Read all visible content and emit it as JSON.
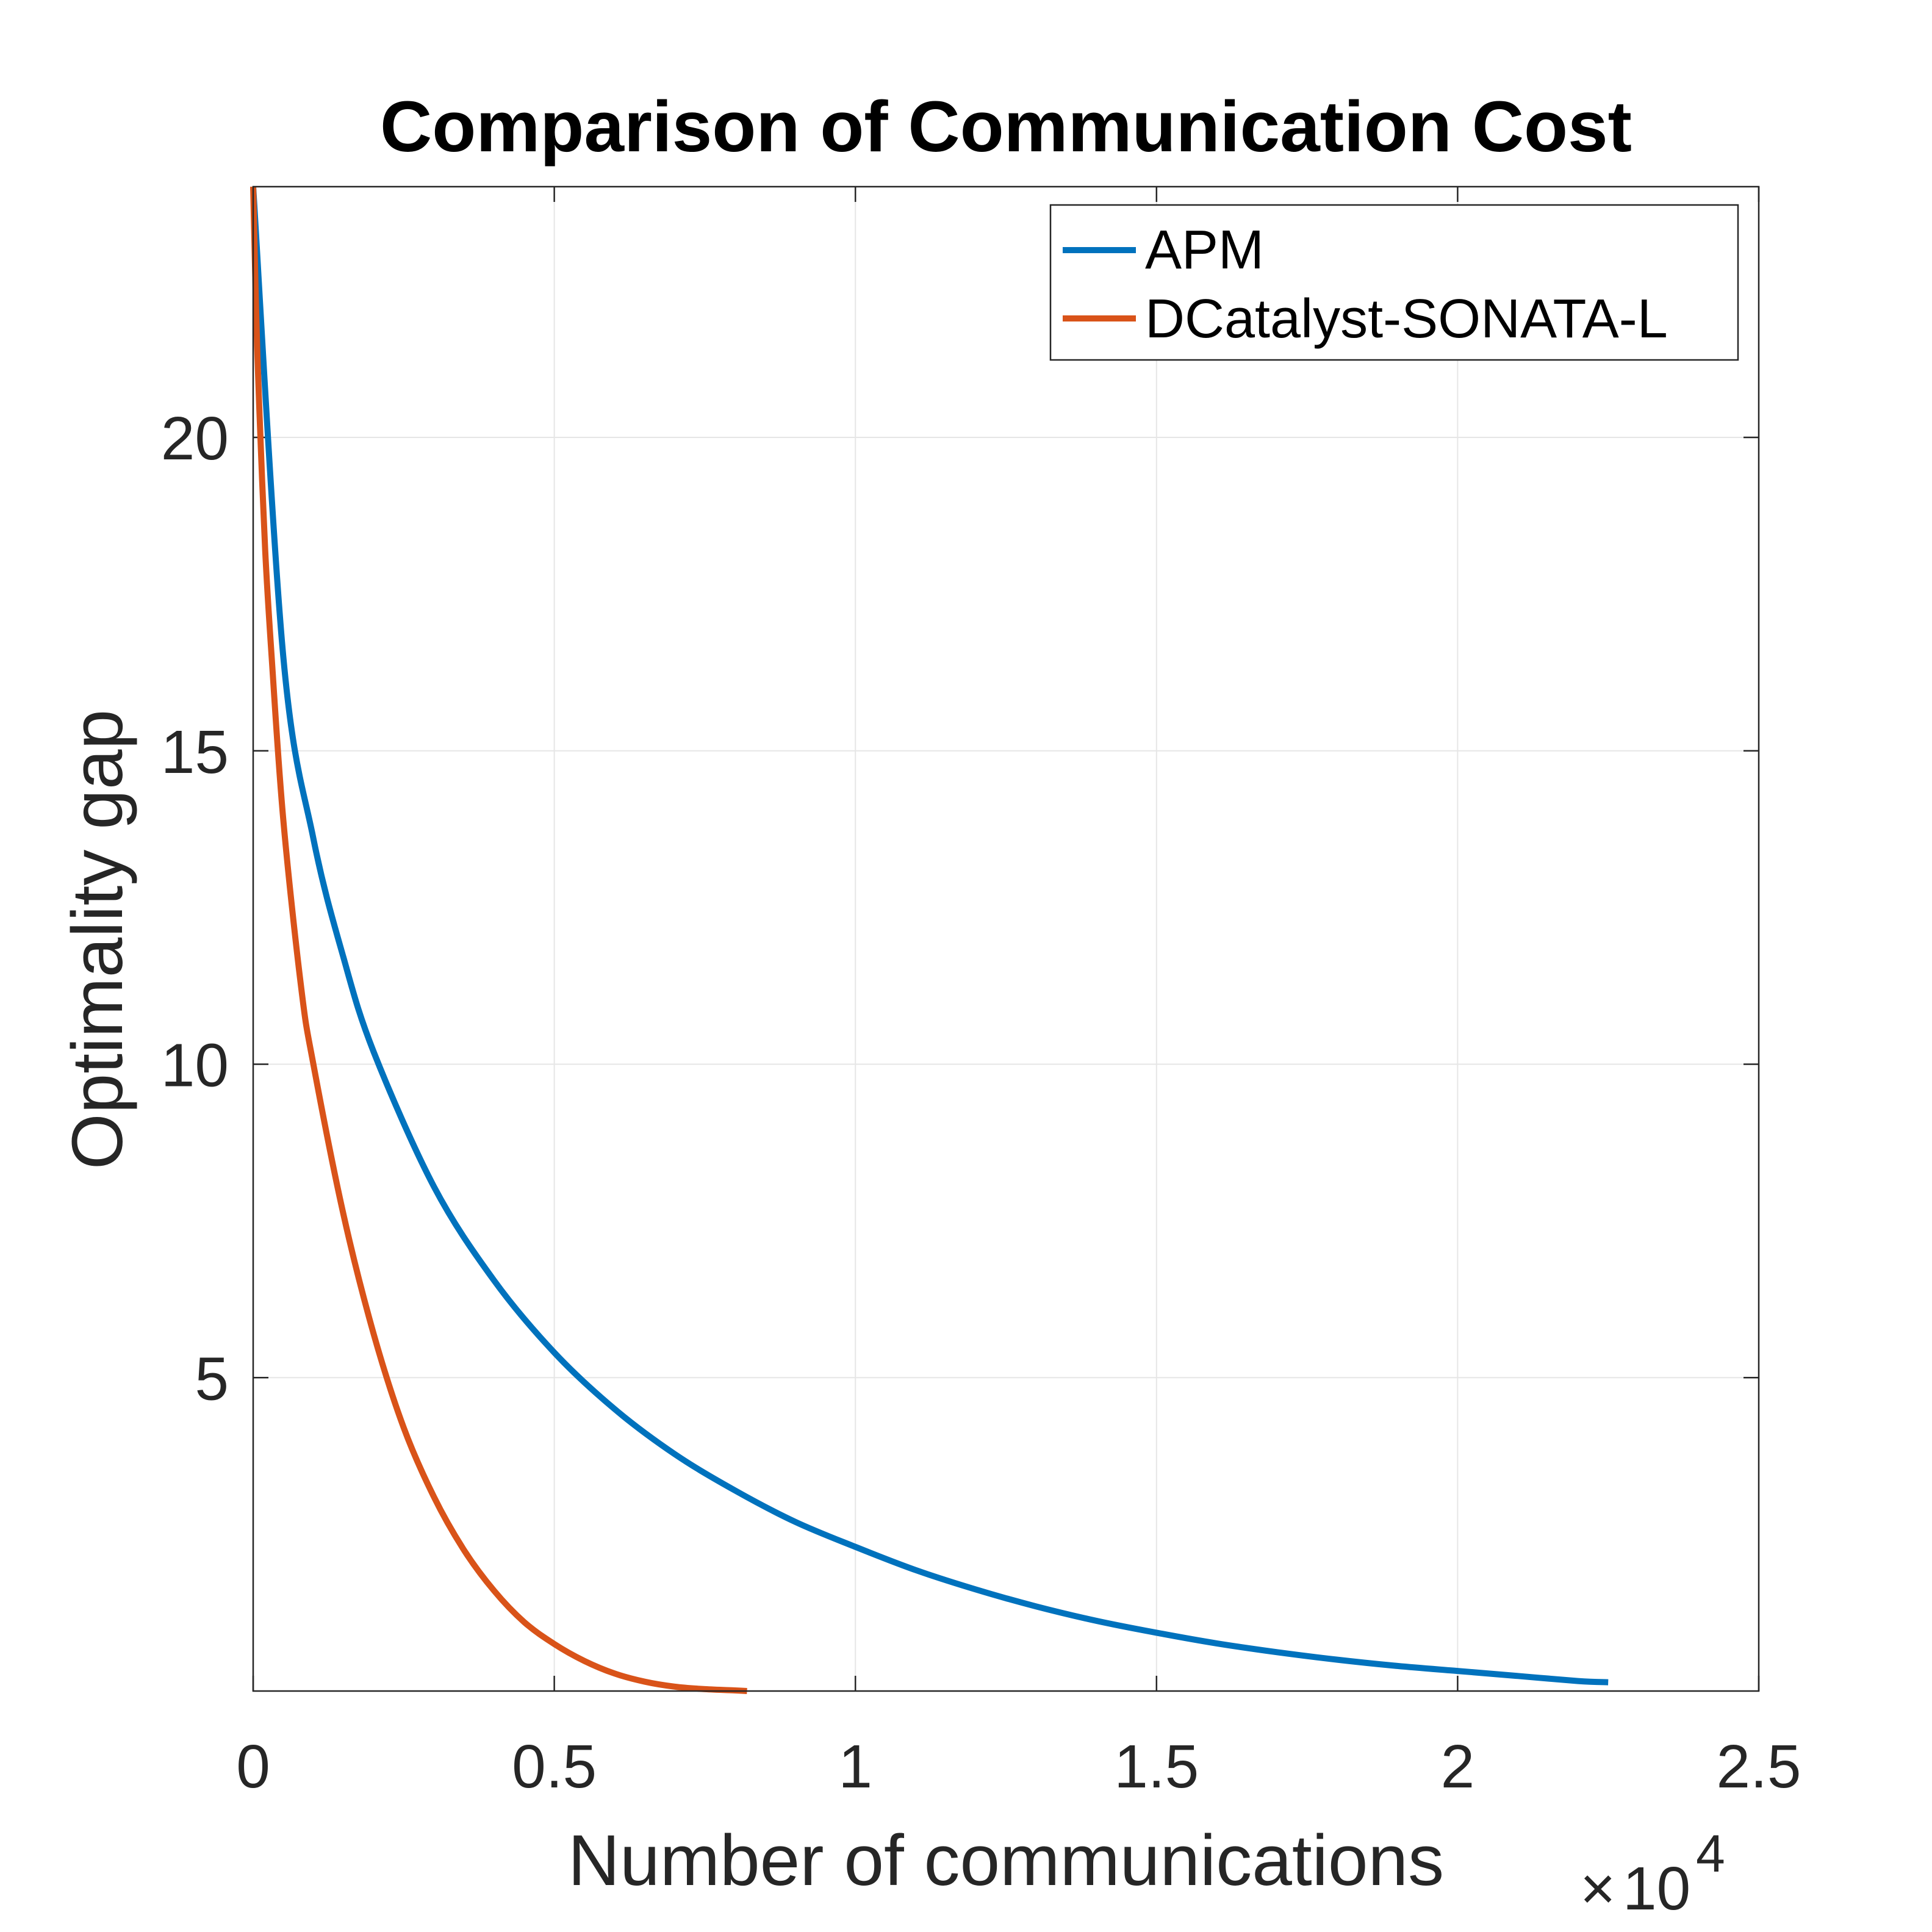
{
  "chart_data": {
    "type": "line",
    "title": "Comparison of Communication Cost",
    "xlabel": "Number of communications",
    "ylabel": "Optimality gap",
    "x_exponent": {
      "base": "10",
      "power": "4",
      "prefix": "×"
    },
    "xlim": [
      0,
      2.5
    ],
    "ylim": [
      0,
      24
    ],
    "xticks": [
      0,
      0.5,
      1,
      1.5,
      2,
      2.5
    ],
    "xtick_labels": [
      "0",
      "0.5",
      "1",
      "1.5",
      "2",
      "2.5"
    ],
    "yticks": [
      5,
      10,
      15,
      20
    ],
    "ytick_labels": [
      "5",
      "10",
      "15",
      "20"
    ],
    "grid": true,
    "legend_position": "top-right",
    "series": [
      {
        "name": "APM",
        "color": "#0072BD",
        "x": [
          0,
          0.05,
          0.1,
          0.15,
          0.2,
          0.3,
          0.4,
          0.5,
          0.6,
          0.7,
          0.8,
          0.9,
          1.0,
          1.1,
          1.2,
          1.3,
          1.4,
          1.5,
          1.6,
          1.7,
          1.8,
          1.9,
          2.0,
          2.1,
          2.2,
          2.25
        ],
        "y": [
          24.0,
          16.5,
          13.6,
          11.7,
          10.2,
          8.05,
          6.55,
          5.4,
          4.5,
          3.78,
          3.2,
          2.7,
          2.3,
          1.93,
          1.62,
          1.35,
          1.12,
          0.93,
          0.76,
          0.62,
          0.5,
          0.4,
          0.32,
          0.24,
          0.16,
          0.14
        ]
      },
      {
        "name": "DCatalyst-SONATA-L",
        "color": "#D95319",
        "x": [
          0,
          0.005,
          0.01,
          0.02,
          0.03,
          0.05,
          0.08,
          0.1,
          0.15,
          0.2,
          0.25,
          0.3,
          0.35,
          0.4,
          0.45,
          0.5,
          0.55,
          0.6,
          0.65,
          0.7,
          0.75,
          0.8,
          0.82
        ],
        "y": [
          24.0,
          22.0,
          20.5,
          18.2,
          16.6,
          13.9,
          11.2,
          10.0,
          7.6,
          5.7,
          4.2,
          3.1,
          2.25,
          1.6,
          1.1,
          0.75,
          0.48,
          0.28,
          0.15,
          0.07,
          0.03,
          0.01,
          0.0
        ]
      }
    ]
  }
}
